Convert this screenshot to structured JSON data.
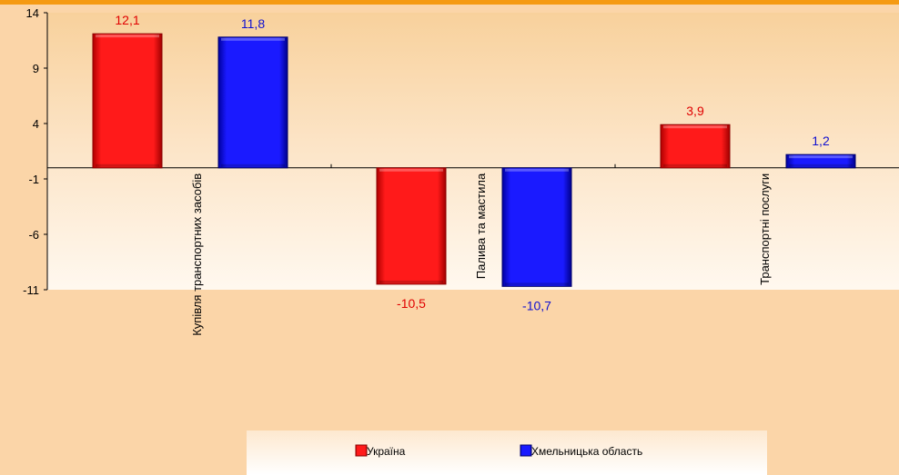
{
  "chart_data": {
    "type": "bar",
    "categories": [
      "Купівля транспортних засобів",
      "Палива та мастила",
      "Транспортні послуги"
    ],
    "series": [
      {
        "name": "Україна",
        "values": [
          12.1,
          -10.5,
          3.9
        ],
        "color": "#ff0000",
        "label_color": "#e00000"
      },
      {
        "name": "Хмельницька область",
        "values": [
          11.8,
          -10.7,
          1.2
        ],
        "color": "#0000ff",
        "label_color": "#1010d0"
      }
    ],
    "value_labels": [
      [
        "12,1",
        "-10,5",
        "3,9"
      ],
      [
        "11,8",
        "-10,7",
        "1,2"
      ]
    ],
    "y_ticks": [
      14,
      9,
      4,
      -1,
      -6,
      -11
    ],
    "ylim": [
      -11,
      14
    ],
    "title": "",
    "xlabel": "",
    "ylabel": "",
    "grid": false,
    "legend_position": "bottom",
    "colors": {
      "background": "#fbd5a8",
      "top_border": "#f59a12",
      "plot_top": "#f8d19c",
      "plot_bottom": "#fff3e4"
    }
  }
}
